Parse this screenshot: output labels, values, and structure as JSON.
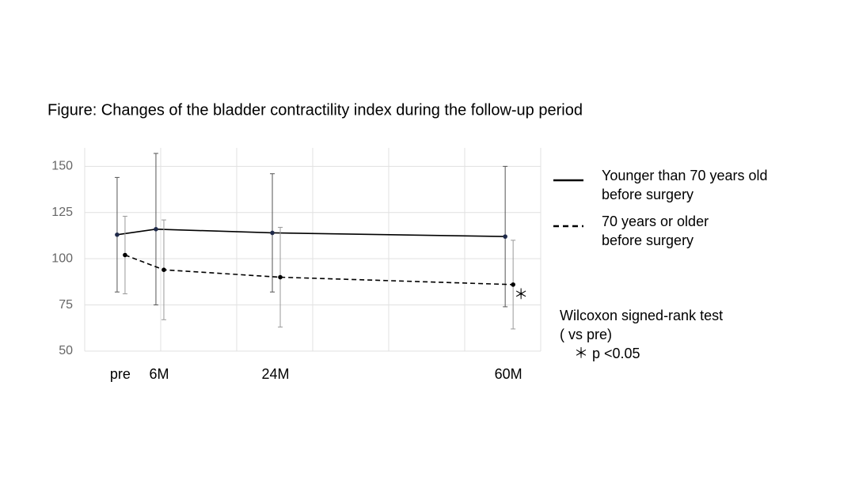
{
  "chart_data": {
    "type": "line",
    "title": "Figure: Changes of the bladder contractility index during the follow-up period",
    "x": [
      0,
      6,
      24,
      60
    ],
    "xlim": [
      -5.5,
      65
    ],
    "xticks": [
      {
        "value": 0,
        "label": "pre"
      },
      {
        "value": 6,
        "label": "6M"
      },
      {
        "value": 24,
        "label": "24M"
      },
      {
        "value": 60,
        "label": "60M"
      }
    ],
    "ylim": [
      50,
      160
    ],
    "yticks": [
      50,
      75,
      100,
      125,
      150
    ],
    "grid": true,
    "series": [
      {
        "name": "Younger than 70 years old\nbefore surgery",
        "color": "#000000",
        "marker_color": "#1f2a4a",
        "error_color": "#555555",
        "linestyle": "solid",
        "values": [
          113,
          116,
          114,
          112
        ],
        "errors": [
          31,
          41,
          32,
          38
        ]
      },
      {
        "name": "70 years or older\nbefore surgery",
        "color": "#000000",
        "marker_color": "#000000",
        "error_color": "#999999",
        "linestyle": "dashed",
        "values": [
          102,
          94,
          90,
          86
        ],
        "errors": [
          21,
          27,
          27,
          24
        ]
      }
    ],
    "annotations": [
      {
        "text": "＊",
        "series": 1,
        "point": 3
      }
    ],
    "note": [
      "Wilcoxon signed-rank test",
      "( vs pre)",
      "＊ p <0.05"
    ]
  }
}
